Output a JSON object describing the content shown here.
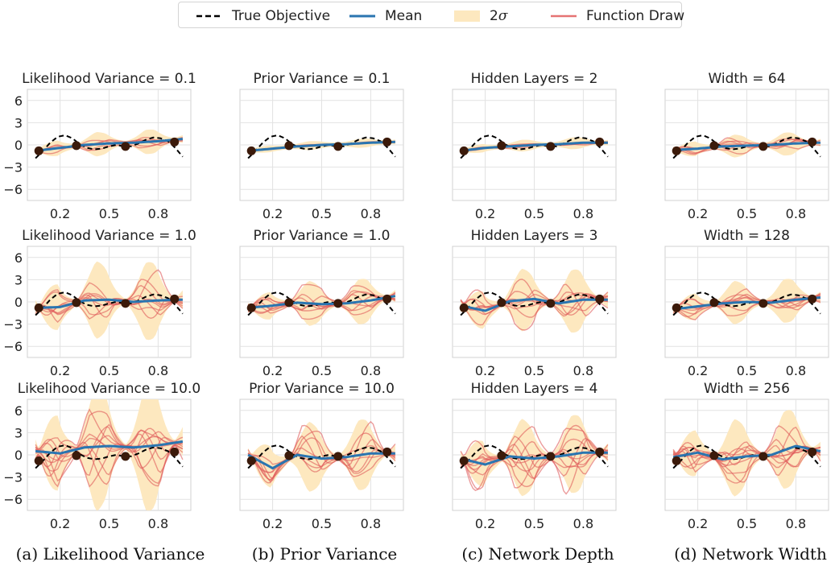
{
  "legend": {
    "true_objective": "True Objective",
    "mean": "Mean",
    "band_prefix": "2",
    "band_symbol": "σ",
    "function_draw": "Function Draw"
  },
  "colors": {
    "true_objective": "#000000",
    "mean": "#2a75b0",
    "band": "#fde8bf",
    "draws": "#e05a5a",
    "observations": "#3b1a0a",
    "grid": "#e2e2e2"
  },
  "captions": [
    "(a) Likelihood Variance",
    "(b) Prior Variance",
    "(c) Network Depth",
    "(d) Network Width"
  ],
  "chart_data": {
    "type": "line",
    "layout": "3x4 grid of small multiples sharing axes",
    "xlim": [
      0,
      1
    ],
    "ylim": [
      -7.5,
      7.5
    ],
    "x_ticks": [
      0.2,
      0.5,
      0.8
    ],
    "x_tick_labels": [
      "0.2",
      "0.5",
      "0.8"
    ],
    "y_ticks": [
      6,
      3,
      0,
      -3,
      -6
    ],
    "y_tick_labels": [
      "6",
      "3",
      "0",
      "−3",
      "−6"
    ],
    "grid": true,
    "legend_position": "top-center",
    "observations": {
      "x": [
        0.07,
        0.3,
        0.6,
        0.9
      ],
      "y": [
        -0.8,
        -0.1,
        -0.2,
        0.4
      ]
    },
    "true_objective": {
      "x": [
        0.0,
        0.05,
        0.1,
        0.15,
        0.2,
        0.25,
        0.3,
        0.35,
        0.4,
        0.45,
        0.5,
        0.55,
        0.6,
        0.65,
        0.7,
        0.75,
        0.8,
        0.85,
        0.9,
        0.95,
        1.0
      ],
      "y": [
        -1.8,
        -0.8,
        0.3,
        1.1,
        1.3,
        0.9,
        0.1,
        -0.4,
        -0.6,
        -0.5,
        -0.2,
        0.0,
        -0.2,
        -0.2,
        0.2,
        0.7,
        1.0,
        0.9,
        0.5,
        -0.4,
        -1.6
      ]
    },
    "panels": [
      {
        "title": "Likelihood Variance = 0.1",
        "band": 1.4,
        "draws": 6,
        "draw_scale": 0.7,
        "mean_y": [
          -0.8,
          -0.4,
          0.0,
          0.2,
          0.3,
          0.5,
          0.8
        ]
      },
      {
        "title": "Prior Variance = 0.1",
        "band": 0.35,
        "draws": 8,
        "draw_scale": 0.12,
        "mean_y": [
          -0.8,
          -0.5,
          -0.2,
          0.0,
          0.1,
          0.3,
          0.4
        ]
      },
      {
        "title": "Hidden Layers = 2",
        "band": 0.55,
        "draws": 8,
        "draw_scale": 0.2,
        "mean_y": [
          -0.8,
          -0.4,
          -0.2,
          0.0,
          0.1,
          0.3,
          0.3
        ]
      },
      {
        "title": "Width = 64",
        "band": 1.3,
        "draws": 6,
        "draw_scale": 0.8,
        "mean_y": [
          -0.7,
          -0.5,
          -0.2,
          -0.1,
          0.0,
          0.2,
          0.3
        ]
      },
      {
        "title": "Likelihood Variance = 1.0",
        "band": 5.0,
        "draws": 8,
        "draw_scale": 3.0,
        "mean_y": [
          -0.8,
          -0.7,
          0.2,
          0.3,
          0.0,
          0.2,
          0.3
        ]
      },
      {
        "title": "Prior Variance = 1.0",
        "band": 2.8,
        "draws": 8,
        "draw_scale": 1.9,
        "mean_y": [
          -0.8,
          -0.5,
          -0.1,
          -0.3,
          -0.2,
          0.2,
          0.8
        ]
      },
      {
        "title": "Hidden Layers = 3",
        "band": 4.0,
        "draws": 8,
        "draw_scale": 2.6,
        "mean_y": [
          -0.5,
          -1.2,
          0.1,
          0.4,
          -0.2,
          0.3,
          0.3
        ]
      },
      {
        "title": "Width = 128",
        "band": 2.7,
        "draws": 8,
        "draw_scale": 1.8,
        "mean_y": [
          -1.0,
          -0.6,
          -0.2,
          0.0,
          -0.1,
          0.3,
          0.6
        ]
      },
      {
        "title": "Likelihood Variance = 10.0",
        "band": 8.5,
        "draws": 10,
        "draw_scale": 5.0,
        "mean_y": [
          0.5,
          0.2,
          1.0,
          1.2,
          1.0,
          1.3,
          1.8
        ]
      },
      {
        "title": "Prior Variance = 10.0",
        "band": 4.5,
        "draws": 8,
        "draw_scale": 3.0,
        "mean_y": [
          0.0,
          -1.8,
          0.0,
          -0.5,
          -0.3,
          0.2,
          0.2
        ]
      },
      {
        "title": "Hidden Layers = 4",
        "band": 5.0,
        "draws": 10,
        "draw_scale": 3.5,
        "mean_y": [
          -0.5,
          -1.3,
          -0.2,
          -0.5,
          -0.2,
          0.3,
          0.3
        ]
      },
      {
        "title": "Width = 256",
        "band": 5.0,
        "draws": 10,
        "draw_scale": 3.6,
        "mean_y": [
          -0.3,
          0.3,
          -0.6,
          -0.2,
          0.0,
          1.2,
          0.5
        ]
      }
    ]
  }
}
